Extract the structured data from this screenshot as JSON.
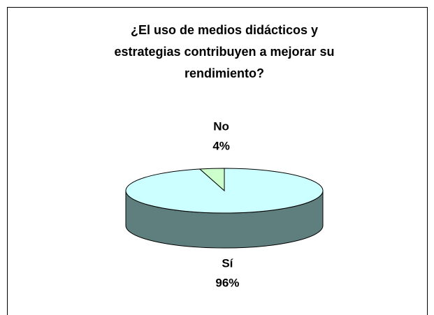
{
  "chart_data": {
    "type": "pie3d",
    "title": [
      "¿El uso de medios didácticos y",
      "estrategias contribuyen a mejorar su",
      "rendimiento?"
    ],
    "categories": [
      "Sí",
      "No"
    ],
    "values": [
      96,
      4
    ],
    "value_labels": [
      "96%",
      "4%"
    ],
    "colors": [
      "#ccffff",
      "#ccffcc"
    ],
    "side_colors": [
      "#5f7f7f",
      "#7f9f7f"
    ]
  }
}
